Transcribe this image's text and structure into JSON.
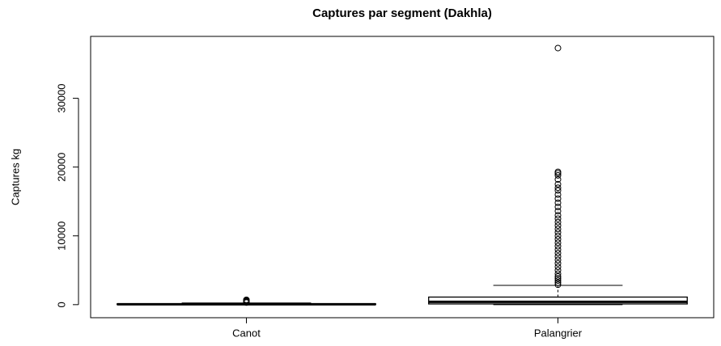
{
  "chart_data": {
    "type": "box",
    "title": "Captures par segment (Dakhla)",
    "ylabel": "Captures kg",
    "categories": [
      "Canot",
      "Palangrier"
    ],
    "series": [
      {
        "name": "Canot",
        "min": 0,
        "q1": 20,
        "median": 50,
        "q3": 110,
        "max": 240,
        "outliers": [
          300,
          400,
          500,
          600,
          700
        ]
      },
      {
        "name": "Palangrier",
        "min": 0,
        "q1": 100,
        "median": 400,
        "q3": 1100,
        "max": 2800,
        "outliers": [
          2900,
          3200,
          3500,
          3800,
          4100,
          4500,
          5000,
          5500,
          6000,
          6500,
          7000,
          7500,
          8000,
          8500,
          9000,
          9500,
          10000,
          10500,
          11000,
          11500,
          12000,
          12500,
          13000,
          13600,
          14200,
          14800,
          15400,
          16000,
          16600,
          17000,
          17500,
          18200,
          18800,
          19100,
          19300,
          37300
        ]
      }
    ],
    "color": "#ffffff",
    "ylim": [
      -1900,
      39000
    ],
    "yticks": [
      0,
      10000,
      20000,
      30000
    ]
  }
}
